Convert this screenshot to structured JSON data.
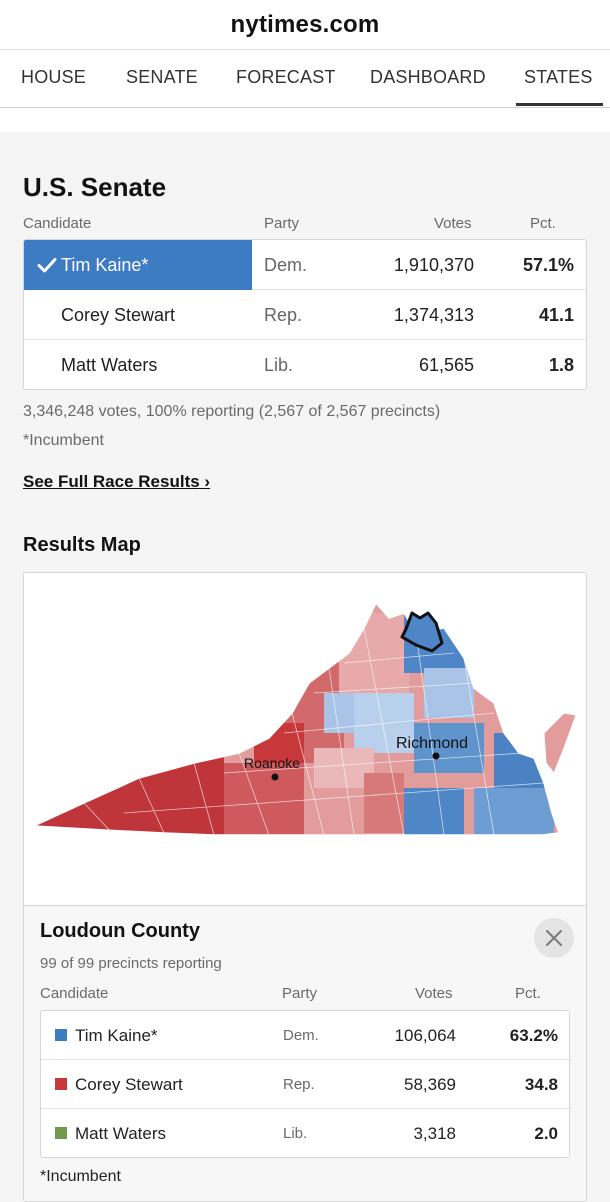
{
  "browser": {
    "domain": "nytimes.com"
  },
  "nav": {
    "tabs": [
      "HOUSE",
      "SENATE",
      "FORECAST",
      "DASHBOARD",
      "STATES"
    ],
    "active": "STATES"
  },
  "race": {
    "title": "U.S. Senate",
    "columns": {
      "candidate": "Candidate",
      "party": "Party",
      "votes": "Votes",
      "pct": "Pct."
    },
    "rows": [
      {
        "name": "Tim Kaine*",
        "party": "Dem.",
        "votes": "1,910,370",
        "pct": "57.1%",
        "winner": true
      },
      {
        "name": "Corey Stewart",
        "party": "Rep.",
        "votes": "1,374,313",
        "pct": "41.1",
        "winner": false
      },
      {
        "name": "Matt Waters",
        "party": "Lib.",
        "votes": "61,565",
        "pct": "1.8",
        "winner": false
      }
    ],
    "summary": "3,346,248 votes, 100% reporting (2,567 of 2,567 precincts)",
    "incumbent_note": "*Incumbent",
    "full_results_link": "See Full Race Results",
    "link_chevron": "›"
  },
  "map": {
    "title": "Results Map",
    "labels": {
      "city1": "Roanoke",
      "city2": "Richmond"
    }
  },
  "county": {
    "name": "Loudoun County",
    "precincts": "99 of 99 precincts reporting",
    "columns": {
      "candidate": "Candidate",
      "party": "Party",
      "votes": "Votes",
      "pct": "Pct."
    },
    "rows": [
      {
        "name": "Tim Kaine*",
        "party": "Dem.",
        "votes": "106,064",
        "pct": "63.2%",
        "color": "#3d7bc2"
      },
      {
        "name": "Corey Stewart",
        "party": "Rep.",
        "votes": "58,369",
        "pct": "34.8",
        "color": "#c8373a"
      },
      {
        "name": "Matt Waters",
        "party": "Lib.",
        "votes": "3,318",
        "pct": "2.0",
        "color": "#6e9a4a"
      }
    ],
    "incumbent_note": "*Incumbent",
    "close_icon": "close-icon"
  },
  "colors": {
    "dem": "#3d7bc2",
    "rep": "#c8373a",
    "lib": "#6e9a4a"
  }
}
